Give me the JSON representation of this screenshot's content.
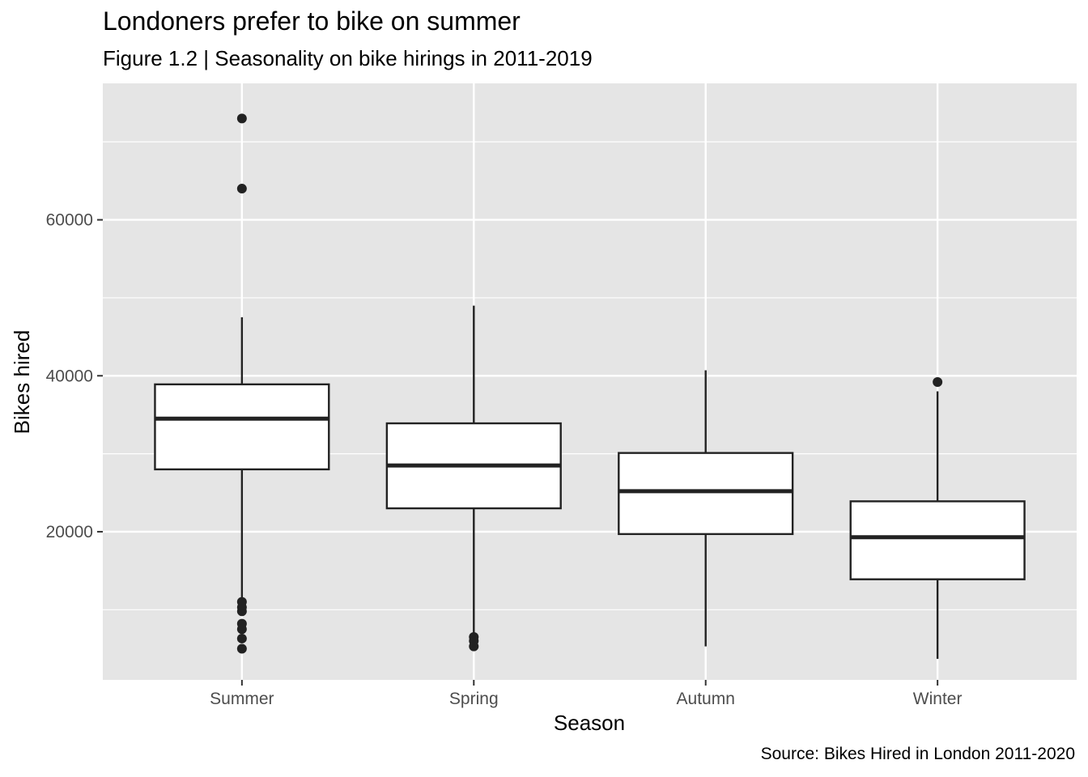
{
  "chart_data": {
    "type": "box",
    "title": "Londoners prefer to bike on summer",
    "subtitle": "Figure 1.2 | Seasonality on bike hirings in 2011-2019",
    "caption": "Source: Bikes Hired in London 2011-2020",
    "xlabel": "Season",
    "ylabel": "Bikes hired",
    "ylim": [
      1000,
      77500
    ],
    "yticks": [
      20000,
      40000,
      60000
    ],
    "grid": true,
    "categories": [
      "Summer",
      "Spring",
      "Autumn",
      "Winter"
    ],
    "boxes": [
      {
        "category": "Summer",
        "whisker_low": 11000,
        "q1": 28000,
        "median": 34500,
        "q3": 38900,
        "whisker_high": 47500,
        "outliers": [
          73000,
          64000,
          11000,
          10300,
          9800,
          8200,
          7500,
          6300,
          5000
        ]
      },
      {
        "category": "Spring",
        "whisker_low": 6500,
        "q1": 23000,
        "median": 28500,
        "q3": 33900,
        "whisker_high": 49000,
        "outliers": [
          6500,
          6000,
          5300
        ]
      },
      {
        "category": "Autumn",
        "whisker_low": 5300,
        "q1": 19700,
        "median": 25200,
        "q3": 30100,
        "whisker_high": 40700,
        "outliers": []
      },
      {
        "category": "Winter",
        "whisker_low": 3700,
        "q1": 13900,
        "median": 19300,
        "q3": 23900,
        "whisker_high": 38000,
        "outliers": [
          39200
        ]
      }
    ],
    "colors": {
      "panel": "#e5e5e5",
      "grid": "#ffffff",
      "box_fill": "#ffffff",
      "box_line": "#222222"
    }
  }
}
